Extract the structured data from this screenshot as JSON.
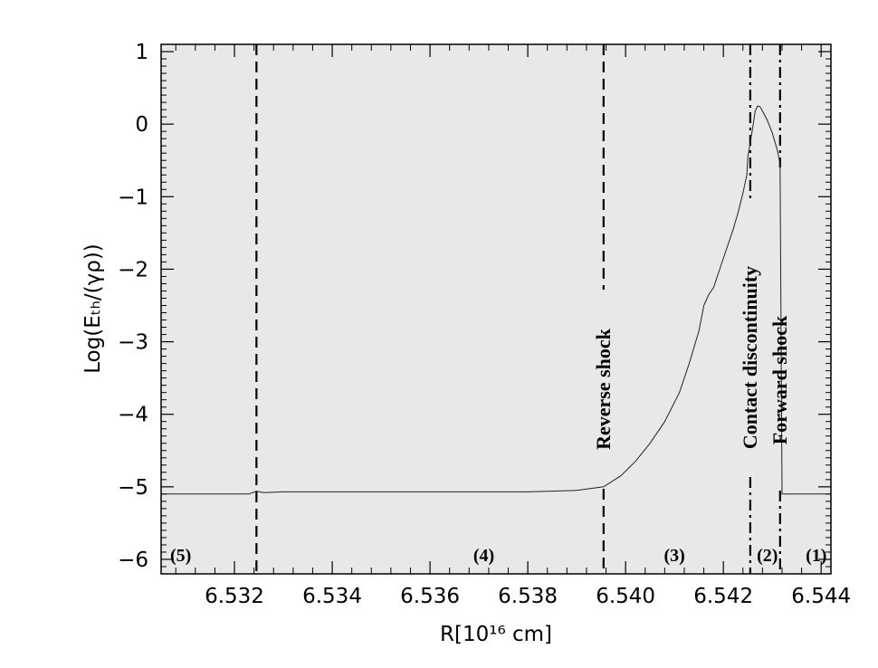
{
  "chart_data": {
    "type": "line",
    "xlabel": "R[10¹⁶ cm]",
    "ylabel": "Log(Eₜₕ/(γρ))",
    "xlim": [
      6.5305,
      6.5442
    ],
    "ylim": [
      -6.2,
      1.1
    ],
    "xticks": [
      6.532,
      6.534,
      6.536,
      6.538,
      6.54,
      6.542,
      6.544
    ],
    "xtick_labels": [
      "6.532",
      "6.534",
      "6.536",
      "6.538",
      "6.540",
      "6.542",
      "6.544"
    ],
    "yticks": [
      -6,
      -5,
      -4,
      -3,
      -2,
      -1,
      0,
      1
    ],
    "ytick_labels": [
      "−6",
      "−5",
      "−4",
      "−3",
      "−2",
      "−1",
      "0",
      "1"
    ],
    "grid": false,
    "background": "#e8e8e8",
    "series": [
      {
        "x": [
          6.5305,
          6.5323,
          6.53245,
          6.5326,
          6.533,
          6.534,
          6.535,
          6.536,
          6.537,
          6.538,
          6.539,
          6.53955,
          6.5399,
          6.5402,
          6.5405,
          6.5408,
          6.5411,
          6.5413,
          6.5415,
          6.5416,
          6.5417,
          6.5418,
          6.5419,
          6.542,
          6.5421,
          6.5422,
          6.5423,
          6.5424,
          6.54248,
          6.5425,
          6.5426,
          6.54265,
          6.5427,
          6.54275,
          6.5428,
          6.5429,
          6.543,
          6.5431,
          6.54316,
          6.5432,
          6.5442
        ],
        "y": [
          -5.1,
          -5.1,
          -5.06,
          -5.08,
          -5.07,
          -5.07,
          -5.07,
          -5.07,
          -5.07,
          -5.07,
          -5.05,
          -5.0,
          -4.85,
          -4.65,
          -4.4,
          -4.1,
          -3.7,
          -3.3,
          -2.85,
          -2.5,
          -2.35,
          -2.25,
          -2.05,
          -1.85,
          -1.65,
          -1.45,
          -1.22,
          -0.95,
          -0.7,
          -0.45,
          -0.05,
          0.18,
          0.25,
          0.24,
          0.18,
          0.05,
          -0.12,
          -0.35,
          -0.55,
          -5.1,
          -5.1
        ]
      }
    ],
    "vlines": [
      {
        "x": 6.53245,
        "style": "dashed",
        "label": ""
      },
      {
        "x": 6.53955,
        "style": "dashed",
        "label": "Reverse shock"
      },
      {
        "x": 6.54255,
        "style": "dashdot",
        "label": "Contact discontinuity"
      },
      {
        "x": 6.54316,
        "style": "dashdot",
        "label": "Forward shock"
      }
    ],
    "regions": [
      {
        "label": "(5)",
        "x": 6.5309
      },
      {
        "label": "(4)",
        "x": 6.5371
      },
      {
        "label": "(3)",
        "x": 6.541
      },
      {
        "label": "(2)",
        "x": 6.5429
      },
      {
        "label": "(1)",
        "x": 6.5439
      }
    ]
  }
}
